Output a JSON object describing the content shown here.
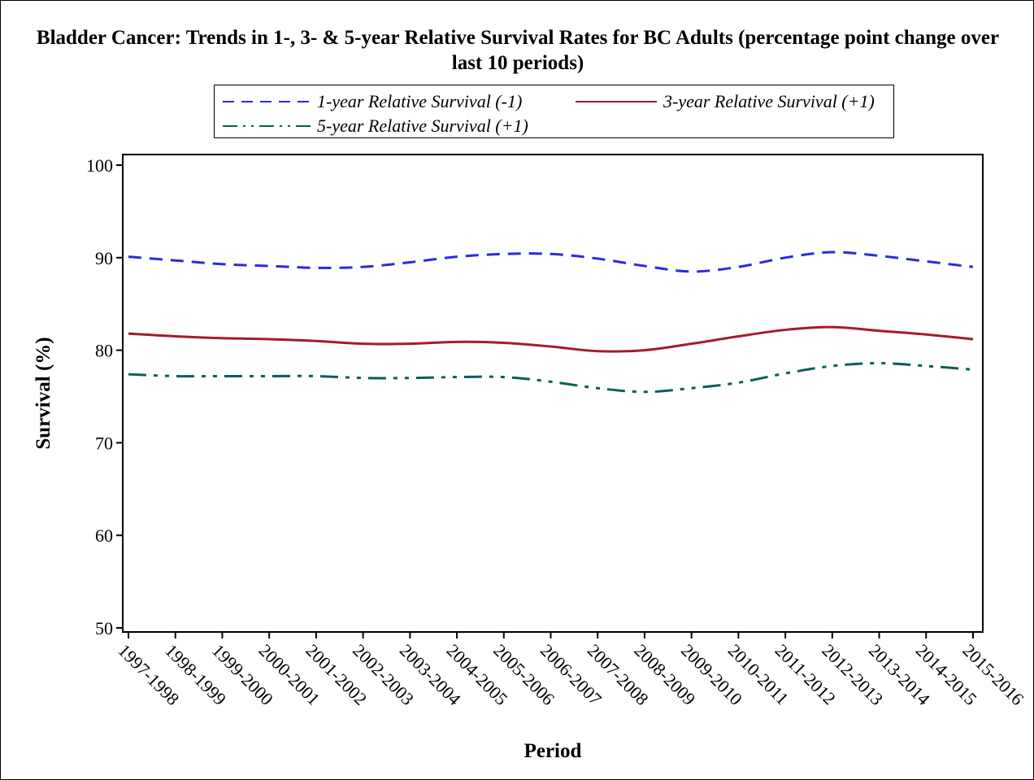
{
  "chart_data": {
    "type": "line",
    "title": "Bladder Cancer: Trends in 1-, 3- & 5-year Relative Survival Rates for BC Adults (percentage point change over last 10 periods)",
    "xlabel": "Period",
    "ylabel": "Survival (%)",
    "ylim": [
      50,
      100
    ],
    "yticks": [
      50,
      60,
      70,
      80,
      90,
      100
    ],
    "grid": false,
    "legend_position": "top",
    "categories": [
      "1997-1998",
      "1998-1999",
      "1999-2000",
      "2000-2001",
      "2001-2002",
      "2002-2003",
      "2003-2004",
      "2004-2005",
      "2005-2006",
      "2006-2007",
      "2007-2008",
      "2008-2009",
      "2009-2010",
      "2010-2011",
      "2011-2012",
      "2012-2013",
      "2013-2014",
      "2014-2015",
      "2015-2016"
    ],
    "series": [
      {
        "name": "1-year Relative Survival (-1)",
        "color": "#2a2ae0",
        "dash": "dashed",
        "values": [
          90.1,
          89.7,
          89.3,
          89.1,
          88.9,
          89.0,
          89.5,
          90.1,
          90.4,
          90.4,
          89.9,
          89.1,
          88.5,
          89.0,
          90.0,
          90.6,
          90.2,
          89.6,
          89.0
        ]
      },
      {
        "name": "3-year Relative Survival (+1)",
        "color": "#a31b2d",
        "dash": "solid",
        "values": [
          81.8,
          81.5,
          81.3,
          81.2,
          81.0,
          80.7,
          80.7,
          80.9,
          80.8,
          80.4,
          79.9,
          80.0,
          80.7,
          81.5,
          82.2,
          82.5,
          82.1,
          81.7,
          81.2
        ]
      },
      {
        "name": "5-year Relative Survival (+1)",
        "color": "#0a5e54",
        "dash": "dashdotdot",
        "values": [
          77.4,
          77.2,
          77.2,
          77.2,
          77.2,
          77.0,
          77.0,
          77.1,
          77.1,
          76.6,
          75.9,
          75.5,
          75.9,
          76.5,
          77.5,
          78.3,
          78.6,
          78.3,
          77.9
        ]
      }
    ]
  }
}
